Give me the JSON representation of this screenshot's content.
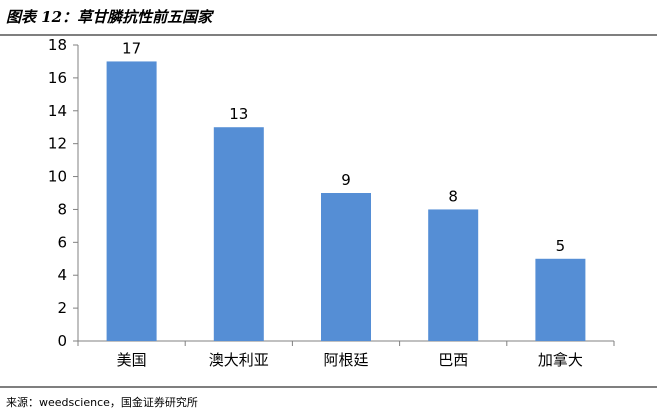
{
  "header": {
    "title": "图表 12：草甘膦抗性前五国家"
  },
  "footer": {
    "source": "来源：weedscience，国金证券研究所"
  },
  "chart_data": {
    "type": "bar",
    "title": "",
    "xlabel": "",
    "ylabel": "",
    "categories": [
      "美国",
      "澳大利亚",
      "阿根廷",
      "巴西",
      "加拿大"
    ],
    "values": [
      17,
      13,
      9,
      8,
      5
    ],
    "ylim": [
      0,
      18
    ],
    "yticks": [
      0,
      2,
      4,
      6,
      8,
      10,
      12,
      14,
      16,
      18
    ],
    "data_labels": true,
    "grid": false,
    "legend": "none",
    "bar_color": "#558ed5"
  }
}
